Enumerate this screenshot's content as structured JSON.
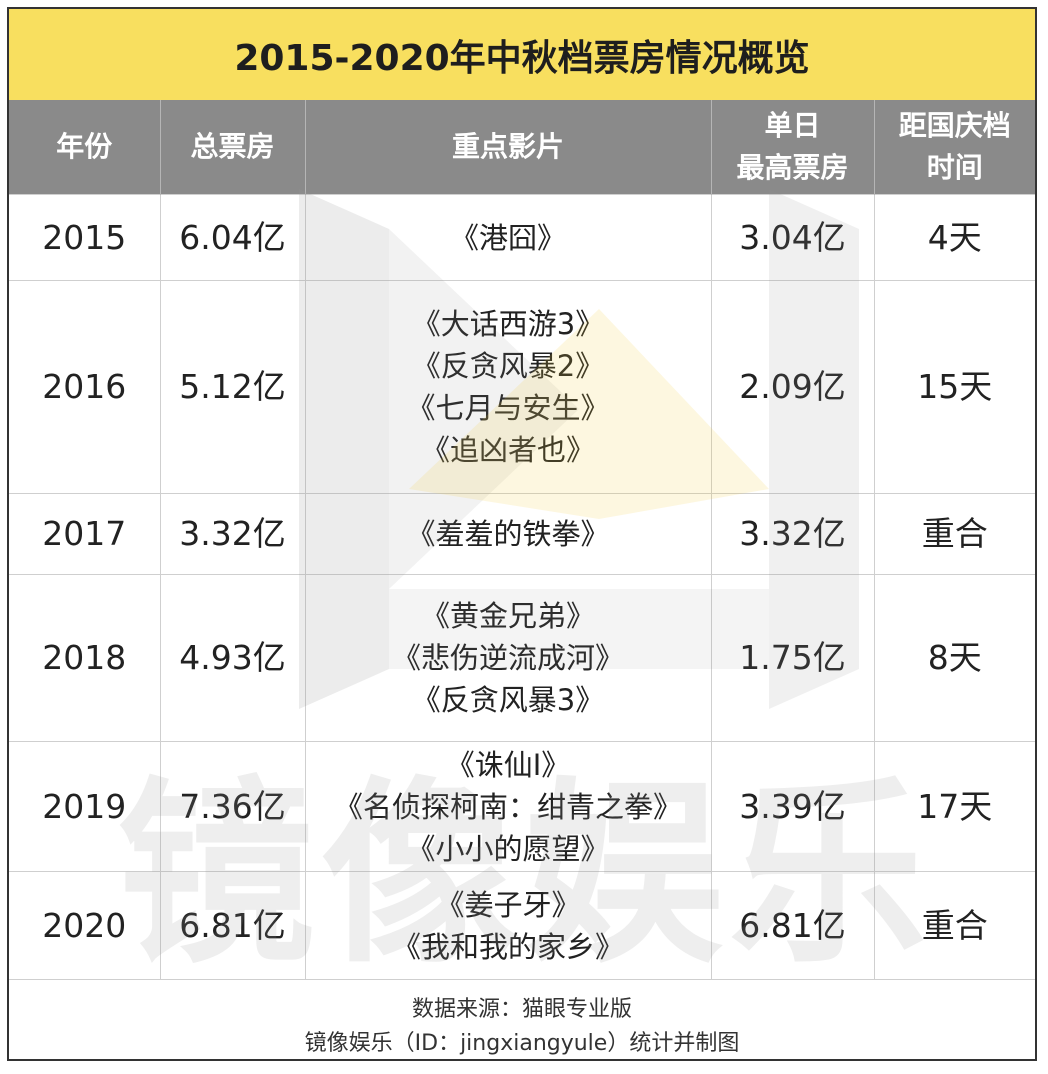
{
  "title": "2015-2020年中秋档票房情况概览",
  "headers": {
    "year": "年份",
    "total": "总票房",
    "films": "重点影片",
    "peak_line1": "单日",
    "peak_line2": "最高票房",
    "gap_line1": "距国庆档",
    "gap_line2": "时间"
  },
  "rows": [
    {
      "year": "2015",
      "total": "6.04亿",
      "films": [
        "《港囧》"
      ],
      "peak": "3.04亿",
      "gap": "4天"
    },
    {
      "year": "2016",
      "total": "5.12亿",
      "films": [
        "《大话西游3》",
        "《反贪风暴2》",
        "《七月与安生》",
        "《追凶者也》"
      ],
      "peak": "2.09亿",
      "gap": "15天"
    },
    {
      "year": "2017",
      "total": "3.32亿",
      "films": [
        "《羞羞的铁拳》"
      ],
      "peak": "3.32亿",
      "gap": "重合"
    },
    {
      "year": "2018",
      "total": "4.93亿",
      "films": [
        "《黄金兄弟》",
        "《悲伤逆流成河》",
        "《反贪风暴3》"
      ],
      "peak": "1.75亿",
      "gap": "8天"
    },
    {
      "year": "2019",
      "total": "7.36亿",
      "films": [
        "《诛仙Ⅰ》",
        "《名侦探柯南：绀青之拳》",
        "《小小的愿望》"
      ],
      "peak": "3.39亿",
      "gap": "17天"
    },
    {
      "year": "2020",
      "total": "6.81亿",
      "films": [
        "《姜子牙》",
        "《我和我的家乡》"
      ],
      "peak": "6.81亿",
      "gap": "重合"
    }
  ],
  "footer": {
    "line1": "数据来源：猫眼专业版",
    "line2": "镜像娱乐（ID：jingxiangyule）统计并制图"
  },
  "watermark": "镜像娱乐",
  "colors": {
    "title_bg": "#f8df5f",
    "header_bg": "#8a8a8a",
    "logo_gray": "#9a9a9a",
    "logo_yellow": "#f5cf3c"
  }
}
